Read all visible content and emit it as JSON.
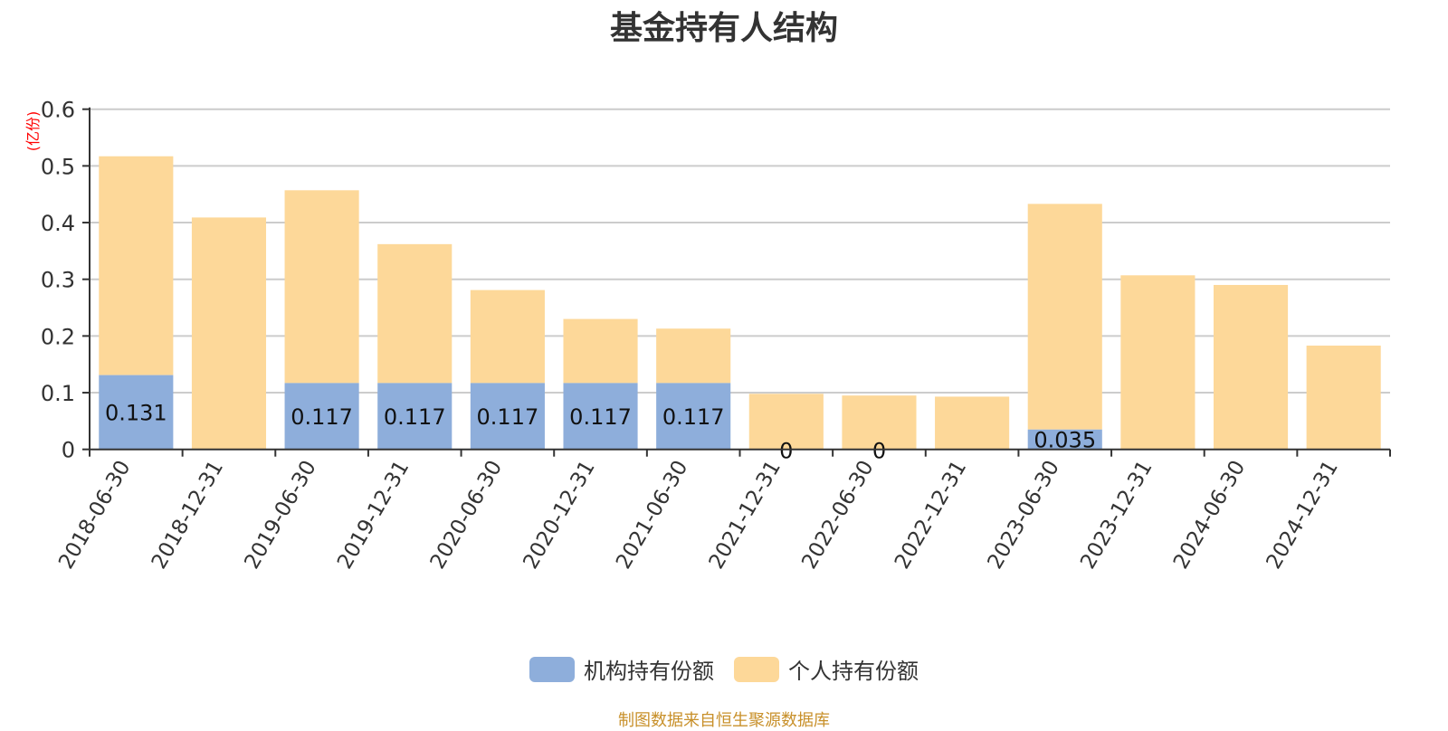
{
  "title": "基金持有人结构",
  "footer": "制图数据来自恒生聚源数据库",
  "legend": [
    {
      "label": "机构持有份额",
      "color": "#8eaedb"
    },
    {
      "label": "个人持有份额",
      "color": "#fdd899"
    }
  ],
  "chart_data": {
    "type": "bar",
    "stacked": true,
    "title": "基金持有人结构",
    "xlabel": "",
    "ylabel": "(亿份)",
    "ylabel_color": "#ff0000",
    "ylim": [
      0,
      0.6
    ],
    "yticks": [
      0,
      0.1,
      0.2,
      0.3,
      0.4,
      0.5,
      0.6
    ],
    "grid": true,
    "legend_position": "bottom",
    "categories": [
      "2018-06-30",
      "2018-12-31",
      "2019-06-30",
      "2019-12-31",
      "2020-06-30",
      "2020-12-31",
      "2021-06-30",
      "2021-12-31",
      "2022-06-30",
      "2022-12-31",
      "2023-06-30",
      "2023-12-31",
      "2024-06-30",
      "2024-12-31"
    ],
    "series": [
      {
        "name": "机构持有份额",
        "color": "#8eaedb",
        "values": [
          0.131,
          0,
          0.117,
          0.117,
          0.117,
          0.117,
          0.117,
          0,
          0,
          0,
          0.035,
          0,
          0,
          0
        ],
        "labels": [
          "0.131",
          "",
          "0.117",
          "0.117",
          "0.117",
          "0.117",
          "0.117",
          "0",
          "0",
          "",
          "0.035",
          "",
          "",
          ""
        ]
      },
      {
        "name": "个人持有份额",
        "color": "#fdd899",
        "values": [
          0.386,
          0.409,
          0.34,
          0.245,
          0.164,
          0.113,
          0.096,
          0.098,
          0.095,
          0.093,
          0.398,
          0.307,
          0.29,
          0.183
        ]
      }
    ]
  }
}
